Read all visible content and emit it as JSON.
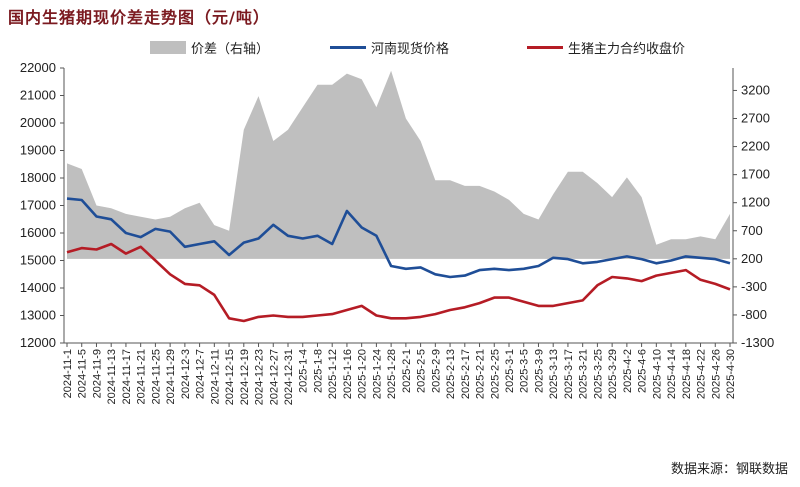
{
  "title": "国内生猪期现价差走势图（元/吨）",
  "source": "数据来源：钢联数据",
  "colors": {
    "spread": "#bfbfbf",
    "spot": "#1f4e97",
    "futures": "#b51c25",
    "title": "#7b1a20"
  },
  "chart_data": {
    "type": "line",
    "x": [
      "2024-11-1",
      "2024-11-5",
      "2024-11-9",
      "2024-11-13",
      "2024-11-17",
      "2024-11-21",
      "2024-11-25",
      "2024-11-29",
      "2024-12-3",
      "2024-12-7",
      "2024-12-11",
      "2024-12-15",
      "2024-12-19",
      "2024-12-23",
      "2024-12-27",
      "2024-12-31",
      "2025-1-4",
      "2025-1-8",
      "2025-1-12",
      "2025-1-16",
      "2025-1-20",
      "2025-1-24",
      "2025-1-28",
      "2025-2-1",
      "2025-2-5",
      "2025-2-9",
      "2025-2-13",
      "2025-2-17",
      "2025-2-21",
      "2025-2-25",
      "2025-3-1",
      "2025-3-5",
      "2025-3-9",
      "2025-3-13",
      "2025-3-17",
      "2025-3-21",
      "2025-3-25",
      "2025-3-29",
      "2025-4-2",
      "2025-4-6",
      "2025-4-10",
      "2025-4-14",
      "2025-4-18",
      "2025-4-22",
      "2025-4-26",
      "2025-4-30"
    ],
    "left_axis": {
      "range": [
        12000,
        22000
      ],
      "ticks": [
        12000,
        13000,
        14000,
        15000,
        16000,
        17000,
        18000,
        19000,
        20000,
        21000,
        22000
      ]
    },
    "right_axis": {
      "range": [
        -1300,
        3600
      ],
      "ticks": [
        -1300,
        -800,
        -300,
        200,
        700,
        1200,
        1700,
        2200,
        2700,
        3200
      ]
    },
    "legend": [
      "价差（右轴）",
      "河南现货价格",
      "生猪主力合约收盘价"
    ],
    "series": [
      {
        "name": "价差（右轴）",
        "type": "area",
        "axis": "right",
        "values": [
          1900,
          1800,
          1150,
          1100,
          1000,
          950,
          900,
          950,
          1100,
          1200,
          800,
          700,
          2500,
          3100,
          2300,
          2500,
          2900,
          3300,
          3300,
          3500,
          3400,
          2900,
          3550,
          2700,
          2300,
          1600,
          1600,
          1500,
          1500,
          1400,
          1250,
          1000,
          900,
          1350,
          1750,
          1750,
          1550,
          1300,
          1650,
          1300,
          450,
          550,
          550,
          600,
          550,
          1000
        ]
      },
      {
        "name": "河南现货价格",
        "type": "line",
        "axis": "left",
        "values": [
          17250,
          17200,
          16600,
          16500,
          16000,
          15850,
          16150,
          16050,
          15500,
          15600,
          15700,
          15200,
          15650,
          15800,
          16300,
          15900,
          15800,
          15900,
          15600,
          16800,
          16200,
          15900,
          14800,
          14700,
          14750,
          14500,
          14400,
          14450,
          14650,
          14700,
          14650,
          14700,
          14800,
          15100,
          15050,
          14900,
          14950,
          15050,
          15150,
          15050,
          14900,
          15000,
          15150,
          15100,
          15050,
          14900
        ]
      },
      {
        "name": "生猪主力合约收盘价",
        "type": "line",
        "axis": "left",
        "values": [
          15300,
          15450,
          15400,
          15600,
          15250,
          15500,
          15000,
          14500,
          14150,
          14100,
          13750,
          12900,
          12800,
          12950,
          13000,
          12950,
          12950,
          13000,
          13050,
          13200,
          13350,
          13000,
          12900,
          12900,
          12950,
          13050,
          13200,
          13300,
          13450,
          13650,
          13650,
          13500,
          13350,
          13350,
          13450,
          13550,
          14100,
          14400,
          14350,
          14250,
          14450,
          14550,
          14650,
          14300,
          14150,
          13950
        ]
      }
    ]
  }
}
